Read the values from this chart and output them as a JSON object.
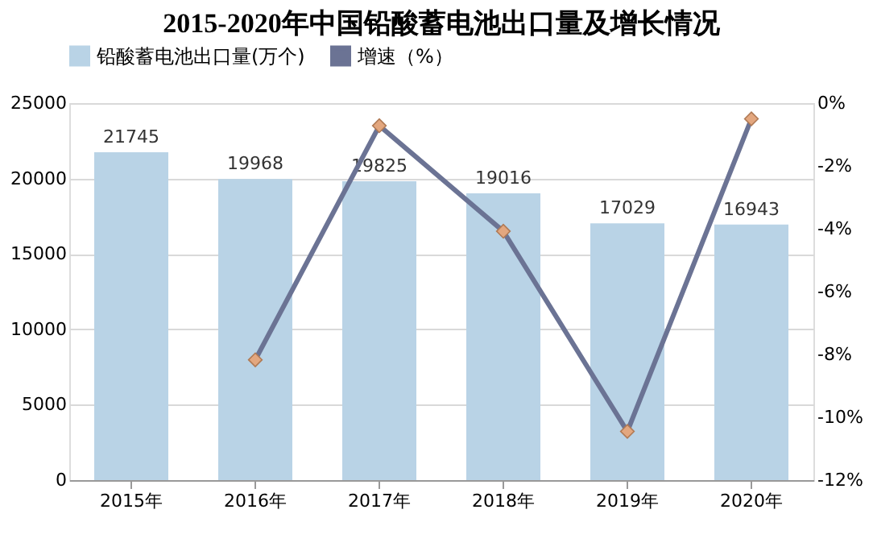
{
  "chart_data": {
    "type": "bar",
    "title": "2015-2020年中国铅酸蓄电池出口量及增长情况",
    "categories": [
      "2015年",
      "2016年",
      "2017年",
      "2018年",
      "2019年",
      "2020年"
    ],
    "series": [
      {
        "name": "铅酸蓄电池出口量(万个)",
        "color": "#b9d3e6",
        "values": [
          21745,
          19968,
          19825,
          19016,
          17029,
          16943
        ],
        "value_labels": [
          "21745",
          "19968",
          "19825",
          "19016",
          "17029",
          "16943"
        ]
      },
      {
        "name": "增速（%）",
        "type": "line",
        "axis": "y2",
        "color": "#6b7394",
        "values": [
          null,
          -8.17,
          -0.72,
          -4.08,
          -10.45,
          -0.5
        ]
      }
    ],
    "ylim": [
      0,
      25000
    ],
    "yticks": [
      0,
      5000,
      10000,
      15000,
      20000,
      25000
    ],
    "y2lim": [
      -12,
      0
    ],
    "y2ticks": [
      {
        "value": -12,
        "label": "-12%"
      },
      {
        "value": -10,
        "label": "-10%"
      },
      {
        "value": -8,
        "label": "-8%"
      },
      {
        "value": -6,
        "label": "-6%"
      },
      {
        "value": -4,
        "label": "-4%"
      },
      {
        "value": -2,
        "label": "-2%"
      },
      {
        "value": 0,
        "label": "0%"
      }
    ],
    "grid": "y",
    "legend": "top",
    "marker": "diamond"
  }
}
